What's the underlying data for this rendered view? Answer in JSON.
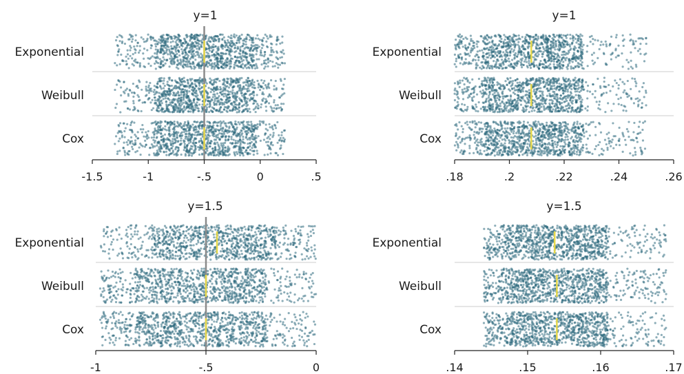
{
  "colors": {
    "point": "#2e6a7e",
    "mean_line": "#e6d84a",
    "ref_line": "#8a8a8a",
    "separator": "#d8d8d8"
  },
  "chart_data": [
    {
      "type": "scatter",
      "subtype": "jittered strip plot",
      "title": "y=1",
      "categories": [
        "Exponential",
        "Weibull",
        "Cox"
      ],
      "xlim": [
        -1.5,
        0.5
      ],
      "xticks": [
        -1.5,
        -1,
        -0.5,
        0,
        0.5
      ],
      "xtick_labels": [
        "-1.5",
        "-1",
        "-.5",
        "0",
        ".5"
      ],
      "reference_line": -0.5,
      "series": [
        {
          "category": "Exponential",
          "mean": -0.5,
          "core_range": [
            -0.95,
            -0.05
          ],
          "full_range": [
            -1.3,
            0.22
          ],
          "n_points": 1000
        },
        {
          "category": "Weibull",
          "mean": -0.5,
          "core_range": [
            -0.95,
            -0.05
          ],
          "full_range": [
            -1.3,
            0.22
          ],
          "n_points": 1000
        },
        {
          "category": "Cox",
          "mean": -0.5,
          "core_range": [
            -0.95,
            -0.05
          ],
          "full_range": [
            -1.3,
            0.22
          ],
          "n_points": 1000
        }
      ]
    },
    {
      "type": "scatter",
      "subtype": "jittered strip plot",
      "title": "y=1",
      "categories": [
        "Exponential",
        "Weibull",
        "Cox"
      ],
      "xlim": [
        0.18,
        0.26
      ],
      "xticks": [
        0.18,
        0.2,
        0.22,
        0.24,
        0.26
      ],
      "xtick_labels": [
        ".18",
        ".2",
        ".22",
        ".24",
        ".26"
      ],
      "reference_line": null,
      "series": [
        {
          "category": "Exponential",
          "mean": 0.208,
          "core_range": [
            0.19,
            0.227
          ],
          "full_range": [
            0.18,
            0.25
          ],
          "n_points": 1000
        },
        {
          "category": "Weibull",
          "mean": 0.208,
          "core_range": [
            0.19,
            0.227
          ],
          "full_range": [
            0.18,
            0.25
          ],
          "n_points": 1000
        },
        {
          "category": "Cox",
          "mean": 0.208,
          "core_range": [
            0.19,
            0.227
          ],
          "full_range": [
            0.18,
            0.25
          ],
          "n_points": 1000
        }
      ]
    },
    {
      "type": "scatter",
      "subtype": "jittered strip plot",
      "title": "y=1.5",
      "categories": [
        "Exponential",
        "Weibull",
        "Cox"
      ],
      "xlim": [
        -1,
        0
      ],
      "xticks": [
        -1,
        -0.5,
        0
      ],
      "xtick_labels": [
        "-1",
        "-.5",
        "0"
      ],
      "reference_line": -0.5,
      "series": [
        {
          "category": "Exponential",
          "mean": -0.45,
          "core_range": [
            -0.75,
            -0.18
          ],
          "full_range": [
            -0.98,
            0.0
          ],
          "n_points": 1000
        },
        {
          "category": "Weibull",
          "mean": -0.5,
          "core_range": [
            -0.82,
            -0.22
          ],
          "full_range": [
            -0.98,
            0.0
          ],
          "n_points": 1000
        },
        {
          "category": "Cox",
          "mean": -0.5,
          "core_range": [
            -0.82,
            -0.22
          ],
          "full_range": [
            -0.98,
            0.0
          ],
          "n_points": 1000
        }
      ]
    },
    {
      "type": "scatter",
      "subtype": "jittered strip plot",
      "title": "y=1.5",
      "categories": [
        "Exponential",
        "Weibull",
        "Cox"
      ],
      "xlim": [
        0.14,
        0.17
      ],
      "xticks": [
        0.14,
        0.15,
        0.16,
        0.17
      ],
      "xtick_labels": [
        ".14",
        ".15",
        ".16",
        ".17"
      ],
      "reference_line": null,
      "series": [
        {
          "category": "Exponential",
          "mean": 0.1537,
          "core_range": [
            0.147,
            0.161
          ],
          "full_range": [
            0.144,
            0.169
          ],
          "n_points": 1000
        },
        {
          "category": "Weibull",
          "mean": 0.154,
          "core_range": [
            0.147,
            0.161
          ],
          "full_range": [
            0.144,
            0.169
          ],
          "n_points": 1000
        },
        {
          "category": "Cox",
          "mean": 0.154,
          "core_range": [
            0.147,
            0.161
          ],
          "full_range": [
            0.144,
            0.169
          ],
          "n_points": 1000
        }
      ]
    }
  ]
}
